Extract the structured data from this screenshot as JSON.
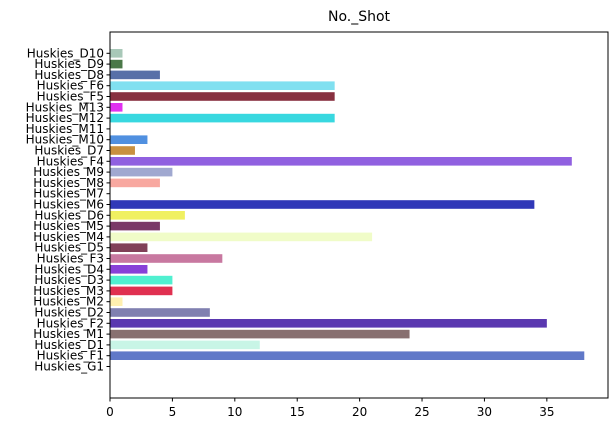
{
  "chart_data": {
    "type": "bar",
    "orientation": "horizontal",
    "title": "No._Shot",
    "xlabel": "",
    "ylabel": "",
    "xlim": [
      0,
      39.9
    ],
    "xticks": [
      0,
      5,
      10,
      15,
      20,
      25,
      30,
      35
    ],
    "grid": false,
    "categories": [
      "Huskies_G1",
      "Huskies_F1",
      "Huskies_D1",
      "Huskies_M1",
      "Huskies_F2",
      "Huskies_D2",
      "Huskies_M2",
      "Huskies_M3",
      "Huskies_D3",
      "Huskies_D4",
      "Huskies_F3",
      "Huskies_D5",
      "Huskies_M4",
      "Huskies_M5",
      "Huskies_D6",
      "Huskies_M6",
      "Huskies_M7",
      "Huskies_M8",
      "Huskies_M9",
      "Huskies_F4",
      "Huskies_D7",
      "Huskies_M10",
      "Huskies_M11",
      "Huskies_M12",
      "Huskies_M13",
      "Huskies_F5",
      "Huskies_F6",
      "Huskies_D8",
      "Huskies_D9",
      "Huskies_D10"
    ],
    "values": [
      0,
      38,
      12,
      24,
      35,
      8,
      1,
      5,
      5,
      3,
      9,
      3,
      21,
      4,
      6,
      34,
      0,
      4,
      5,
      37,
      2,
      3,
      0,
      18,
      1,
      18,
      18,
      4,
      1,
      1
    ],
    "colors": [
      "#ffffff",
      "#6078c8",
      "#c8f5e6",
      "#887070",
      "#5a38b0",
      "#8080b0",
      "#fff0b0",
      "#e03050",
      "#50f0d0",
      "#8840d8",
      "#c878a0",
      "#804058",
      "#f0fcc8",
      "#7a3868",
      "#f0f060",
      "#3038b8",
      "#ffffff",
      "#f8a8a0",
      "#a0a8d0",
      "#9060e0",
      "#c89040",
      "#5090e0",
      "#ffffff",
      "#38d8e0",
      "#e030f0",
      "#883040",
      "#80e0f0",
      "#5870a8",
      "#4a7848",
      "#a8c8b8"
    ]
  }
}
